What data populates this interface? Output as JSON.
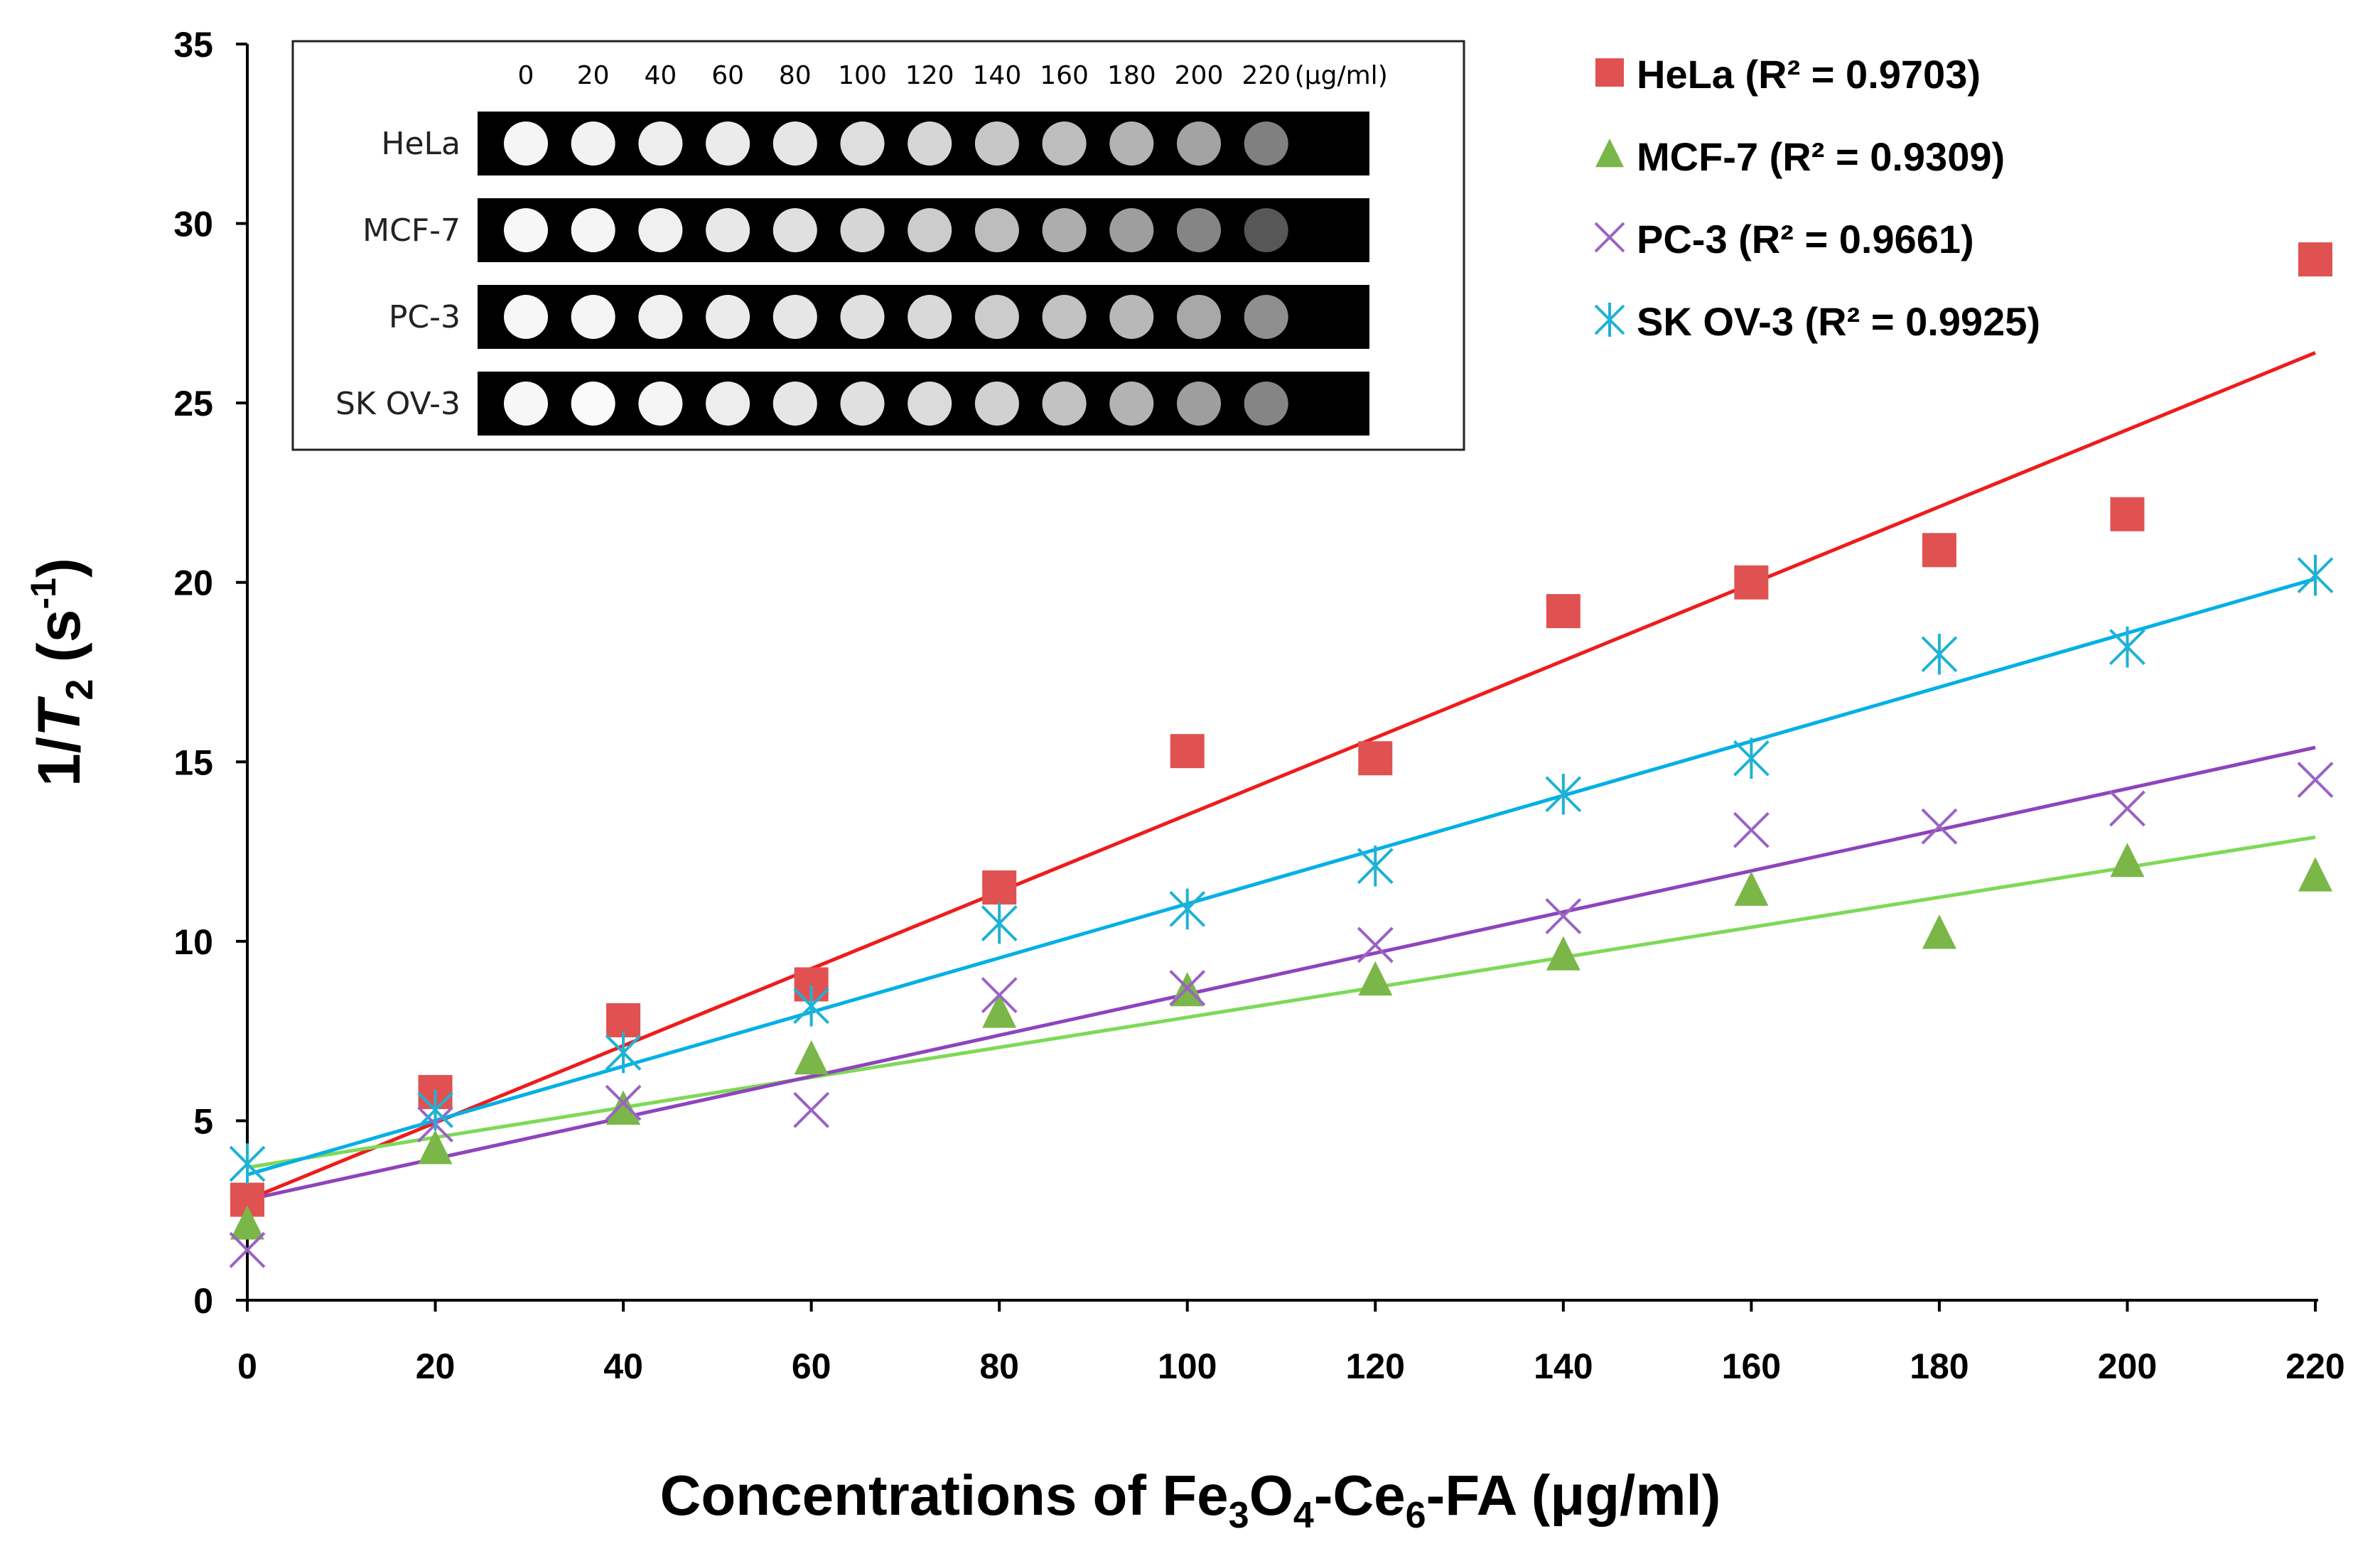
{
  "chart_data": {
    "type": "scatter",
    "x": [
      0,
      20,
      40,
      60,
      80,
      100,
      120,
      140,
      160,
      180,
      200,
      220
    ],
    "series": [
      {
        "name": "HeLa",
        "r2_label": "HeLa (R² = 0.9703)",
        "color": "#e05252",
        "line_color": "#ee1c1c",
        "marker": "square",
        "values": [
          2.8,
          5.8,
          7.8,
          8.8,
          11.5,
          15.3,
          15.1,
          19.2,
          20.0,
          20.9,
          21.9,
          29.0
        ],
        "fit": [
          2.8,
          26.4
        ]
      },
      {
        "name": "MCF-7",
        "r2_label": "MCF-7 (R² = 0.9309)",
        "color": "#7ab648",
        "line_color": "#7ed957",
        "marker": "triangle",
        "values": [
          2.1,
          4.2,
          5.3,
          6.7,
          8.0,
          8.6,
          8.9,
          9.6,
          11.4,
          10.2,
          12.2,
          11.8
        ],
        "fit": [
          3.7,
          12.9
        ]
      },
      {
        "name": "PC-3",
        "r2_label": "PC-3 (R² = 0.9661)",
        "color": "#9b63c4",
        "line_color": "#8e44bd",
        "marker": "x",
        "values": [
          1.4,
          4.9,
          5.5,
          5.3,
          8.5,
          8.7,
          9.9,
          10.7,
          13.1,
          13.2,
          13.7,
          14.5
        ],
        "fit": [
          2.8,
          15.4
        ]
      },
      {
        "name": "SK OV-3",
        "r2_label": "SK OV-3 (R² = 0.9925)",
        "color": "#1eb2d4",
        "line_color": "#00b0e6",
        "marker": "asterisk",
        "values": [
          3.8,
          5.3,
          6.9,
          8.2,
          10.5,
          10.9,
          12.1,
          14.1,
          15.1,
          18.0,
          18.2,
          20.2
        ],
        "fit": [
          3.5,
          20.1
        ]
      }
    ],
    "xlabel": "Concentrations of Fe₃O₄-Ce₆-FA (μg/ml)",
    "xlabel_parts": [
      "Concentrations of Fe",
      "3",
      "O",
      "4",
      "-Ce",
      "6",
      "-FA (μg/ml)"
    ],
    "ylabel_parts": [
      "1/",
      "T",
      "2",
      " (s",
      "-1",
      ")"
    ],
    "ylabel": "1/T2 (s-1)",
    "xlim": [
      0,
      220
    ],
    "ylim": [
      0,
      35
    ],
    "x_ticks": [
      "0",
      "20",
      "40",
      "60",
      "80",
      "100",
      "120",
      "140",
      "160",
      "180",
      "200",
      "220"
    ],
    "y_ticks": [
      "0",
      "5",
      "10",
      "15",
      "20",
      "25",
      "30",
      "35"
    ],
    "legend_position": "top-right",
    "grid": false
  },
  "inset": {
    "concentrations": [
      "0",
      "20",
      "40",
      "60",
      "80",
      "100",
      "120",
      "140",
      "160",
      "180",
      "200",
      "220"
    ],
    "unit": "(μg/ml)",
    "rows": [
      "HeLa",
      "MCF-7",
      "PC-3",
      "SK OV-3"
    ],
    "brightness": [
      [
        0.96,
        0.95,
        0.93,
        0.92,
        0.9,
        0.87,
        0.84,
        0.78,
        0.74,
        0.7,
        0.64,
        0.5
      ],
      [
        0.97,
        0.96,
        0.94,
        0.91,
        0.88,
        0.84,
        0.8,
        0.74,
        0.68,
        0.62,
        0.52,
        0.34
      ],
      [
        0.97,
        0.96,
        0.94,
        0.92,
        0.9,
        0.88,
        0.85,
        0.8,
        0.76,
        0.72,
        0.66,
        0.56
      ],
      [
        0.97,
        0.98,
        0.96,
        0.93,
        0.9,
        0.88,
        0.86,
        0.82,
        0.76,
        0.7,
        0.62,
        0.52
      ]
    ]
  }
}
